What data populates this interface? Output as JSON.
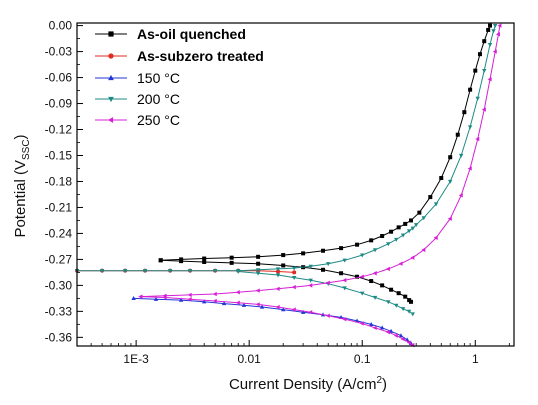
{
  "chart_data": {
    "type": "scatter",
    "title": "",
    "xlabel_main": "Current Density (A/cm",
    "xlabel_sup": "2",
    "xlabel_tail": ")",
    "ylabel_main": "Potential (V",
    "ylabel_sub": "SSC",
    "ylabel_tail": ")",
    "x_scale": "log",
    "xlim": [
      0.0003,
      2.2
    ],
    "ylim": [
      -0.37,
      0.003
    ],
    "x_ticks": [
      {
        "value": 0.001,
        "label": "1E-3"
      },
      {
        "value": 0.01,
        "label": "0.01"
      },
      {
        "value": 0.1,
        "label": "0.1"
      },
      {
        "value": 1,
        "label": "1"
      }
    ],
    "y_ticks": [
      {
        "value": 0.0,
        "label": "0.00"
      },
      {
        "value": -0.03,
        "label": "-0.03"
      },
      {
        "value": -0.06,
        "label": "-0.06"
      },
      {
        "value": -0.09,
        "label": "-0.09"
      },
      {
        "value": -0.12,
        "label": "-0.12"
      },
      {
        "value": -0.15,
        "label": "-0.15"
      },
      {
        "value": -0.18,
        "label": "-0.18"
      },
      {
        "value": -0.21,
        "label": "-0.21"
      },
      {
        "value": -0.24,
        "label": "-0.24"
      },
      {
        "value": -0.27,
        "label": "-0.27"
      },
      {
        "value": -0.3,
        "label": "-0.30"
      },
      {
        "value": -0.33,
        "label": "-0.33"
      },
      {
        "value": -0.36,
        "label": "-0.36"
      }
    ],
    "grid": false,
    "legend_position": "top-left",
    "series": [
      {
        "name": "As-oil quenched",
        "color": "#000000",
        "marker": "square",
        "bold": true,
        "x": [
          0.00165,
          0.0025,
          0.004,
          0.007,
          0.012,
          0.02,
          0.03,
          0.045,
          0.065,
          0.09,
          0.12,
          0.15,
          0.18,
          0.21,
          0.24,
          0.27,
          0.32,
          0.4,
          0.5,
          0.6,
          0.7,
          0.8,
          0.9,
          1.0,
          1.1,
          1.2,
          1.3,
          1.35
        ],
        "y": [
          -0.271,
          -0.27,
          -0.269,
          -0.268,
          -0.267,
          -0.265,
          -0.263,
          -0.26,
          -0.257,
          -0.253,
          -0.248,
          -0.243,
          -0.238,
          -0.233,
          -0.229,
          -0.225,
          -0.216,
          -0.198,
          -0.176,
          -0.152,
          -0.126,
          -0.1,
          -0.074,
          -0.052,
          -0.033,
          -0.018,
          -0.005,
          0.0
        ],
        "x2": [
          0.00165,
          0.0025,
          0.004,
          0.007,
          0.012,
          0.02,
          0.03,
          0.045,
          0.065,
          0.09,
          0.12,
          0.15,
          0.18,
          0.21,
          0.24,
          0.26,
          0.27
        ],
        "y2": [
          -0.271,
          -0.272,
          -0.273,
          -0.274,
          -0.275,
          -0.277,
          -0.279,
          -0.282,
          -0.286,
          -0.29,
          -0.295,
          -0.3,
          -0.305,
          -0.309,
          -0.313,
          -0.317,
          -0.319
        ]
      },
      {
        "name": "As-subzero treated",
        "color": "#e0291f",
        "marker": "circle",
        "bold": true,
        "x": [
          0.0003,
          0.0005,
          0.0008,
          0.0012,
          0.002,
          0.003,
          0.005,
          0.008,
          0.012,
          0.018,
          0.025
        ],
        "y": [
          -0.283,
          -0.283,
          -0.283,
          -0.283,
          -0.283,
          -0.283,
          -0.283,
          -0.283,
          -0.283,
          -0.284,
          -0.285
        ]
      },
      {
        "name": "150 °C",
        "color": "#2336d6",
        "marker": "triangle-up",
        "bold": false,
        "x": [
          0.00095,
          0.0015,
          0.0025,
          0.004,
          0.006,
          0.009,
          0.013,
          0.02,
          0.03,
          0.045,
          0.065,
          0.09,
          0.12,
          0.15,
          0.18,
          0.22,
          0.25,
          0.27
        ],
        "y": [
          -0.315,
          -0.316,
          -0.317,
          -0.319,
          -0.321,
          -0.323,
          -0.325,
          -0.328,
          -0.331,
          -0.334,
          -0.337,
          -0.341,
          -0.345,
          -0.349,
          -0.353,
          -0.358,
          -0.363,
          -0.367
        ]
      },
      {
        "name": "200 °C",
        "color": "#1e8a85",
        "marker": "triangle-down",
        "bold": false,
        "x": [
          0.0003,
          0.0005,
          0.0008,
          0.0012,
          0.002,
          0.003,
          0.005,
          0.008,
          0.012,
          0.018,
          0.025,
          0.035,
          0.05,
          0.07,
          0.1,
          0.13,
          0.17,
          0.2,
          0.23,
          0.26,
          0.28,
          0.3,
          0.35,
          0.45,
          0.6,
          0.75,
          0.9,
          1.05,
          1.2,
          1.35,
          1.45,
          1.5
        ],
        "y": [
          -0.283,
          -0.283,
          -0.283,
          -0.283,
          -0.283,
          -0.283,
          -0.283,
          -0.283,
          -0.282,
          -0.281,
          -0.28,
          -0.278,
          -0.275,
          -0.271,
          -0.265,
          -0.259,
          -0.252,
          -0.247,
          -0.242,
          -0.237,
          -0.234,
          -0.23,
          -0.222,
          -0.206,
          -0.18,
          -0.15,
          -0.117,
          -0.084,
          -0.052,
          -0.022,
          -0.006,
          0.0
        ],
        "x2": [
          0.008,
          0.012,
          0.018,
          0.025,
          0.035,
          0.05,
          0.07,
          0.1,
          0.13,
          0.17,
          0.2,
          0.23,
          0.26,
          0.28
        ],
        "y2": [
          -0.284,
          -0.286,
          -0.288,
          -0.291,
          -0.294,
          -0.298,
          -0.303,
          -0.309,
          -0.314,
          -0.319,
          -0.323,
          -0.327,
          -0.33,
          -0.333
        ]
      },
      {
        "name": "250 °C",
        "color": "#d61fd6",
        "marker": "triangle-left",
        "bold": false,
        "x": [
          0.0011,
          0.0018,
          0.003,
          0.005,
          0.008,
          0.012,
          0.018,
          0.025,
          0.035,
          0.05,
          0.07,
          0.1,
          0.13,
          0.17,
          0.22,
          0.28,
          0.35,
          0.45,
          0.6,
          0.75,
          0.9,
          1.05,
          1.2,
          1.35,
          1.5,
          1.6,
          1.65
        ],
        "y": [
          -0.313,
          -0.312,
          -0.311,
          -0.31,
          -0.308,
          -0.306,
          -0.304,
          -0.302,
          -0.3,
          -0.297,
          -0.294,
          -0.29,
          -0.286,
          -0.281,
          -0.275,
          -0.268,
          -0.259,
          -0.245,
          -0.223,
          -0.196,
          -0.165,
          -0.131,
          -0.097,
          -0.062,
          -0.03,
          -0.01,
          0.0
        ],
        "x2": [
          0.0011,
          0.0018,
          0.003,
          0.005,
          0.008,
          0.012,
          0.018,
          0.025,
          0.035,
          0.05,
          0.07,
          0.1,
          0.13,
          0.17,
          0.2,
          0.23,
          0.26,
          0.28
        ],
        "y2": [
          -0.313,
          -0.314,
          -0.316,
          -0.318,
          -0.32,
          -0.322,
          -0.325,
          -0.328,
          -0.331,
          -0.335,
          -0.339,
          -0.344,
          -0.349,
          -0.354,
          -0.358,
          -0.362,
          -0.366,
          -0.369
        ]
      }
    ]
  }
}
